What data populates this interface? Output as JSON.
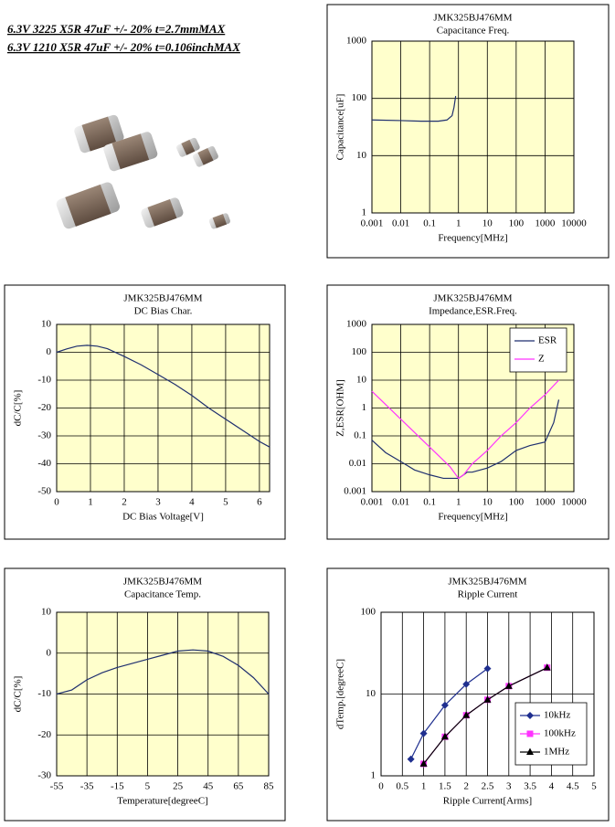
{
  "header": [
    "6.3V 3225 X5R 47uF +/- 20% t=2.7mmMAX",
    "6.3V 1210 X5R 47uF +/- 20% t=0.106inchMAX"
  ],
  "chart_data": [
    {
      "type": "line",
      "title": "JMK325BJ476MM",
      "subtitle": "Capacitance Freq.",
      "xlabel": "Frequency[MHz]",
      "ylabel": "Capacitance[uF]",
      "xlog": true,
      "ylog": true,
      "grid": true,
      "plot_color": "#ffffcc",
      "color": "#1f2f6f",
      "xlim": [
        0.001,
        10000
      ],
      "xticks": [
        0.001,
        0.01,
        0.1,
        1,
        10,
        100,
        1000,
        10000
      ],
      "ylim": [
        1,
        1000
      ],
      "yticks": [
        1,
        10,
        100,
        1000
      ],
      "x": [
        0.001,
        0.01,
        0.05,
        0.1,
        0.2,
        0.4,
        0.6,
        0.7,
        0.8
      ],
      "values": [
        42,
        41,
        40,
        40,
        40,
        42,
        50,
        70,
        110
      ]
    },
    {
      "type": "line",
      "title": "JMK325BJ476MM",
      "subtitle": "DC Bias Char.",
      "xlabel": "DC Bias Voltage[V]",
      "ylabel": "dC/C[%]",
      "grid": true,
      "plot_color": "#ffffcc",
      "color": "#1f2f6f",
      "xlim": [
        0,
        6.3
      ],
      "xticks": [
        0,
        1,
        2,
        3,
        4,
        5,
        6
      ],
      "ylim": [
        -50,
        10
      ],
      "yticks": [
        -50,
        -40,
        -30,
        -20,
        -10,
        0,
        10
      ],
      "x": [
        0,
        0.3,
        0.6,
        0.9,
        1.2,
        1.5,
        2,
        2.5,
        3,
        3.5,
        4,
        4.5,
        5,
        5.5,
        6,
        6.3
      ],
      "values": [
        0,
        1.2,
        2.2,
        2.5,
        2.2,
        1.3,
        -1.5,
        -4.5,
        -8,
        -11.5,
        -15.5,
        -20,
        -24,
        -28,
        -32,
        -34
      ]
    },
    {
      "type": "line",
      "title": "JMK325BJ476MM",
      "subtitle": "Impedance,ESR.Freq.",
      "xlabel": "Frequency[MHz]",
      "ylabel": "Z,ESR[OHM]",
      "xlog": true,
      "ylog": true,
      "grid": true,
      "plot_color": "#ffffcc",
      "legend": "upper right",
      "xlim": [
        0.001,
        10000
      ],
      "xticks": [
        0.001,
        0.01,
        0.1,
        1,
        10,
        100,
        1000,
        10000
      ],
      "ylim": [
        0.001,
        1000
      ],
      "yticks": [
        0.001,
        0.01,
        0.1,
        1,
        10,
        100,
        1000
      ],
      "series": [
        {
          "name": "ESR",
          "color": "#1f2f6f",
          "x": [
            0.001,
            0.003,
            0.01,
            0.03,
            0.1,
            0.3,
            1,
            1.5,
            2,
            3,
            10,
            30,
            100,
            300,
            1000,
            2000,
            3000
          ],
          "values": [
            0.07,
            0.025,
            0.012,
            0.006,
            0.004,
            0.003,
            0.003,
            0.004,
            0.005,
            0.005,
            0.007,
            0.012,
            0.03,
            0.045,
            0.06,
            0.3,
            2
          ]
        },
        {
          "name": "Z",
          "color": "#ff33ff",
          "x": [
            0.001,
            0.01,
            0.1,
            0.5,
            1,
            1.5,
            3,
            10,
            30,
            100,
            300,
            1000,
            3000
          ],
          "values": [
            4,
            0.4,
            0.04,
            0.008,
            0.003,
            0.004,
            0.01,
            0.03,
            0.1,
            0.3,
            1,
            3,
            10
          ]
        }
      ]
    },
    {
      "type": "line",
      "title": "JMK325BJ476MM",
      "subtitle": "Capacitance Temp.",
      "xlabel": "Temperature[degreeC]",
      "ylabel": "dC/C[%]",
      "grid": true,
      "plot_color": "#ffffcc",
      "color": "#1f2f6f",
      "xlim": [
        -55,
        85
      ],
      "xticks": [
        -55,
        -35,
        -15,
        5,
        25,
        45,
        65,
        85
      ],
      "ylim": [
        -30,
        10
      ],
      "yticks": [
        -30,
        -20,
        -10,
        0,
        10
      ],
      "x": [
        -55,
        -45,
        -35,
        -25,
        -15,
        -5,
        5,
        15,
        25,
        35,
        45,
        55,
        65,
        75,
        85
      ],
      "values": [
        -10,
        -9,
        -6.5,
        -4.8,
        -3.5,
        -2.5,
        -1.5,
        -0.5,
        0.5,
        0.8,
        0.5,
        -0.8,
        -3,
        -6,
        -10
      ]
    },
    {
      "type": "line",
      "title": "JMK325BJ476MM",
      "subtitle": "Ripple Current",
      "xlabel": "Ripple Current[Arms]",
      "ylabel": "dTemp.[degreeC]",
      "ylog": true,
      "grid": true,
      "plot_color": "#ffffff",
      "legend": "lower right",
      "xlim": [
        0,
        5
      ],
      "xticks": [
        0,
        0.5,
        1,
        1.5,
        2,
        2.5,
        3,
        3.5,
        4,
        4.5,
        5
      ],
      "ylim": [
        1,
        100
      ],
      "yticks": [
        1,
        10,
        100
      ],
      "series": [
        {
          "name": "10kHz",
          "color": "#1f2f8f",
          "marker": "diamond",
          "x": [
            0.7,
            1,
            1.5,
            2,
            2.5
          ],
          "values": [
            1.6,
            3.3,
            7.3,
            13.2,
            20.5
          ]
        },
        {
          "name": "100kHz",
          "color": "#ff33ff",
          "marker": "square",
          "x": [
            1,
            1.5,
            2,
            2.5,
            3,
            3.9
          ],
          "values": [
            1.4,
            3,
            5.5,
            8.5,
            12.5,
            21
          ]
        },
        {
          "name": "1MHz",
          "color": "#000000",
          "marker": "triangle",
          "x": [
            1,
            1.5,
            2,
            2.5,
            3,
            3.9
          ],
          "values": [
            1.4,
            3,
            5.5,
            8.5,
            12.5,
            21
          ]
        }
      ]
    }
  ]
}
